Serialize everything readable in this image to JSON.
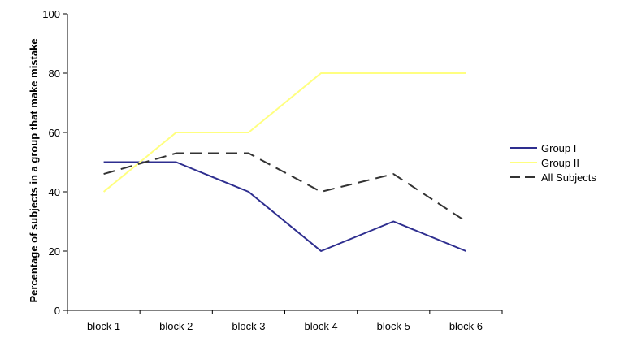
{
  "chart_data": {
    "type": "line",
    "categories": [
      "block 1",
      "block 2",
      "block 3",
      "block 4",
      "block 5",
      "block 6"
    ],
    "series": [
      {
        "name": "Group I",
        "values": [
          50,
          50,
          40,
          20,
          30,
          20
        ],
        "color": "#2E2E8F",
        "dash": "solid"
      },
      {
        "name": "Group II",
        "values": [
          40,
          60,
          60,
          80,
          80,
          80
        ],
        "color": "#FFFF80",
        "dash": "solid"
      },
      {
        "name": "All Subjects",
        "values": [
          46,
          53,
          53,
          40,
          46,
          30
        ],
        "color": "#333333",
        "dash": "dashed"
      }
    ],
    "title": "",
    "xlabel": "",
    "ylabel": "Percentage of subjects in a group that make mistake",
    "ylim": [
      0,
      100
    ],
    "yticks": [
      "0",
      "20",
      "40",
      "60",
      "80",
      "100"
    ],
    "grid": false,
    "legend_position": "right"
  }
}
